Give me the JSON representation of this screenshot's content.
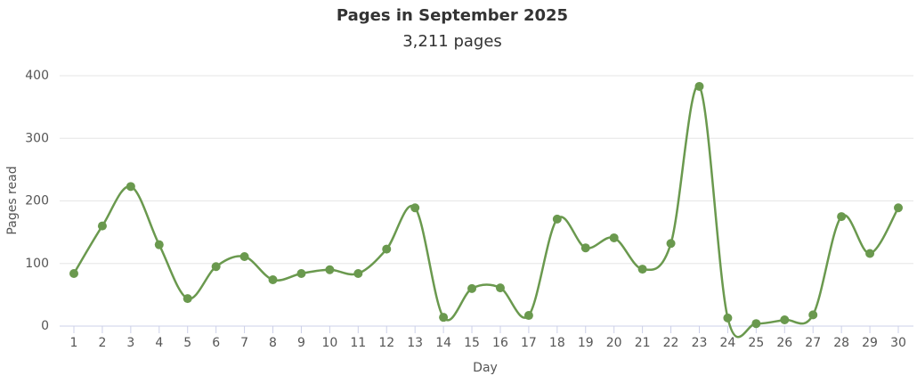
{
  "chart_data": {
    "type": "line",
    "title": "Pages in September 2025",
    "subtitle": "3,211 pages",
    "x_label": "Day",
    "y_label": "Pages read",
    "categories": [
      "1",
      "2",
      "3",
      "4",
      "5",
      "6",
      "7",
      "8",
      "9",
      "10",
      "11",
      "12",
      "13",
      "14",
      "15",
      "16",
      "17",
      "18",
      "19",
      "20",
      "21",
      "22",
      "23",
      "24",
      "25",
      "26",
      "27",
      "28",
      "29",
      "30"
    ],
    "series": [
      {
        "name": "Pages read",
        "color": "#6a994e",
        "values": [
          84,
          160,
          223,
          130,
          44,
          95,
          111,
          74,
          84,
          90,
          84,
          123,
          189,
          14,
          60,
          61,
          17,
          171,
          125,
          141,
          91,
          132,
          383,
          13,
          4,
          10,
          18,
          175,
          116,
          189
        ]
      }
    ],
    "ylim": [
      0,
      400
    ],
    "yticks": [
      0,
      100,
      200,
      300,
      400
    ],
    "grid": true,
    "smooth": true
  }
}
